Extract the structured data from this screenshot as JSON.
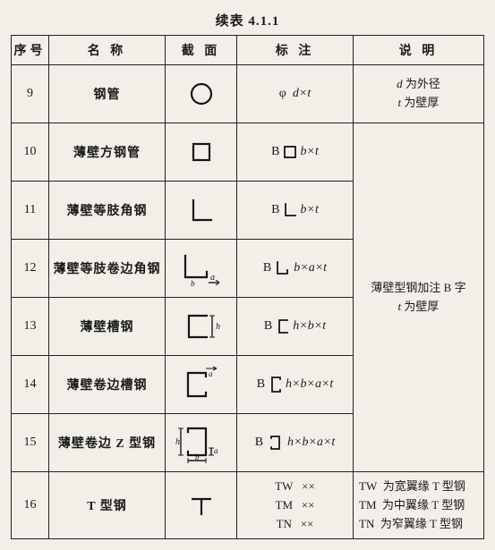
{
  "caption": "续表 4.1.1",
  "headers": {
    "idx": "序号",
    "name": "名 称",
    "section": "截 面",
    "annotation": "标 注",
    "desc": "说 明"
  },
  "rows": [
    {
      "idx": "9",
      "name": "钢管",
      "anno_prefix": "φ",
      "anno_body": "d×t",
      "icon": "circle"
    },
    {
      "idx": "10",
      "name": "薄壁方钢管",
      "anno_prefix": "B",
      "anno_body": "b×t",
      "icon": "square",
      "anno_icon": "sq"
    },
    {
      "idx": "11",
      "name": "薄壁等肢角钢",
      "anno_prefix": "B",
      "anno_body": "b×t",
      "icon": "angle",
      "anno_icon": "angle"
    },
    {
      "idx": "12",
      "name": "薄壁等肢卷边角钢",
      "anno_prefix": "B",
      "anno_body": "b×a×t",
      "icon": "anglelip",
      "anno_icon": "anglelip"
    },
    {
      "idx": "13",
      "name": "薄壁槽钢",
      "anno_prefix": "B",
      "anno_body": "h×b×t",
      "icon": "channel",
      "anno_icon": "channel"
    },
    {
      "idx": "14",
      "name": "薄壁卷边槽钢",
      "anno_prefix": "B",
      "anno_body": "h×b×a×t",
      "icon": "channellip",
      "anno_icon": "channellip"
    },
    {
      "idx": "15",
      "name": "薄壁卷边 Z 型钢",
      "anno_prefix": "B",
      "anno_body": "h×b×a×t",
      "icon": "zlip",
      "anno_icon": "zp"
    },
    {
      "idx": "16",
      "name": "T 型钢",
      "icon": "tee",
      "anno_lines": [
        {
          "l": "TW",
          "r": "××"
        },
        {
          "l": "TM",
          "r": "××"
        },
        {
          "l": "TN",
          "r": "××"
        }
      ]
    }
  ],
  "desc_row9": {
    "line1_a": "d",
    "line1_b": " 为外径",
    "line2_a": "t",
    "line2_b": " 为壁厚"
  },
  "desc_rows10_15": {
    "line1": "薄壁型钢加注 B 字",
    "line2_a": "t",
    "line2_b": " 为壁厚"
  },
  "desc_row16": [
    {
      "l": "TW",
      "r": "为宽翼缘 T 型钢"
    },
    {
      "l": "TM",
      "r": "为中翼缘 T 型钢"
    },
    {
      "l": "TN",
      "r": "为窄翼缘 T 型钢"
    }
  ],
  "style": {
    "stroke": "#161616",
    "stroke_width": 2.2,
    "thin_stroke": 1.4,
    "bg": "#f2efe9"
  }
}
